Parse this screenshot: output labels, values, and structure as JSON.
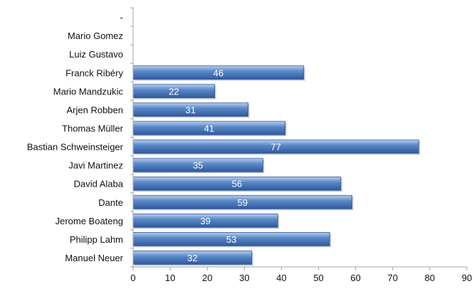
{
  "chart_data": {
    "type": "bar",
    "orientation": "horizontal",
    "title": "",
    "xlabel": "",
    "ylabel": "",
    "xlim": [
      0,
      90
    ],
    "x_ticks": [
      "0",
      "10",
      "20",
      "30",
      "40",
      "50",
      "60",
      "70",
      "80",
      "90"
    ],
    "grid": false,
    "legend": "none",
    "bar_color": "#4f81bd",
    "bar_edge_color": "#2f5597",
    "categories": [
      "Manuel Neuer",
      "Philipp Lahm",
      "Jerome Boateng",
      "Dante",
      "David Alaba",
      "Javi Martinez",
      "Bastian Schweinsteiger",
      "Thomas Müller",
      "Arjen Robben",
      "Mario Mandzukic",
      "Franck Ribéry",
      "Luiz Gustavo",
      "Mario Gomez",
      "-"
    ],
    "values": [
      32,
      53,
      39,
      59,
      56,
      35,
      77,
      41,
      31,
      22,
      46,
      0,
      0,
      0
    ],
    "data_labels": [
      "32",
      "53",
      "39",
      "59",
      "56",
      "35",
      "77",
      "41",
      "31",
      "22",
      "46",
      "",
      "",
      ""
    ]
  }
}
